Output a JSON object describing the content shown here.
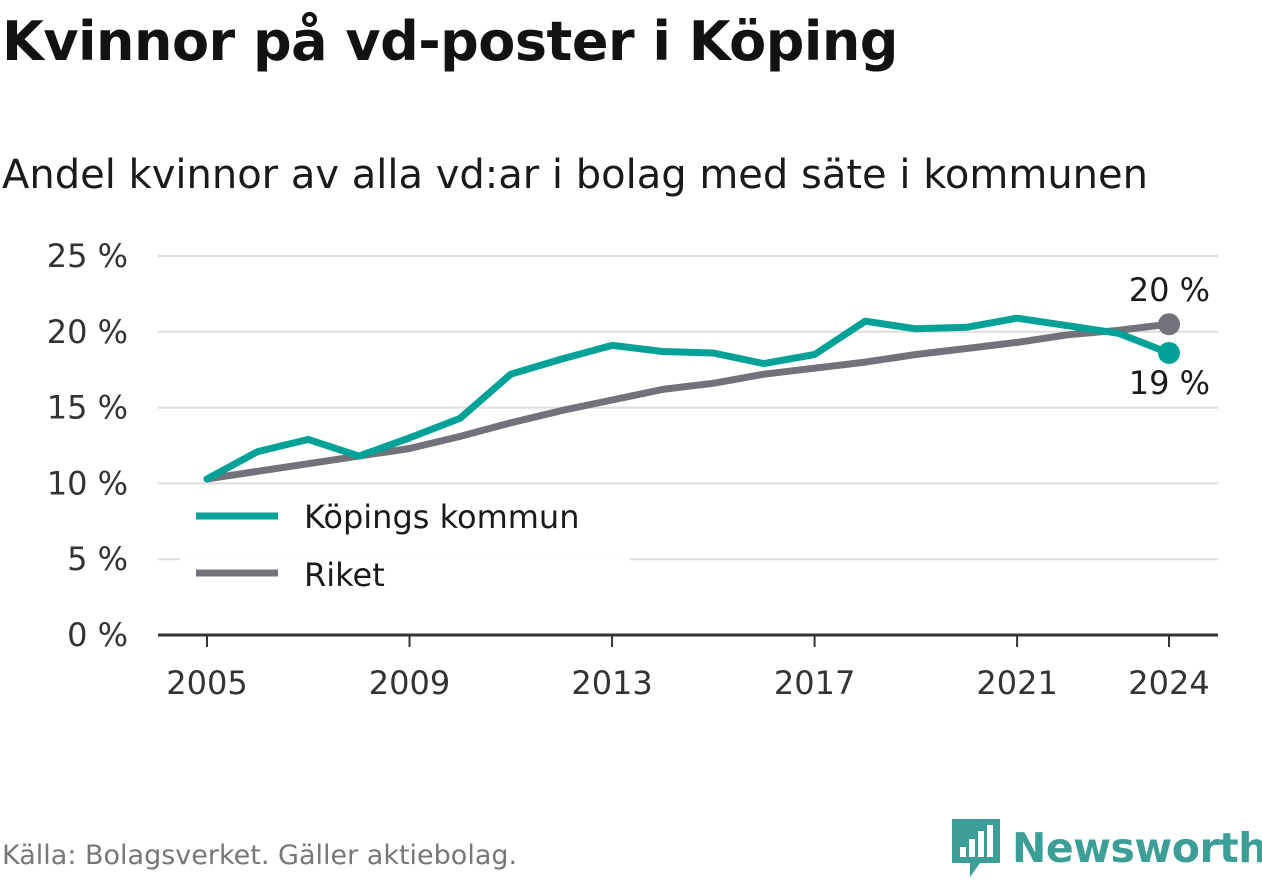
{
  "header": {
    "title": "Kvinnor på vd-poster i Köping",
    "subtitle": "Andel kvinnor av alla vd:ar i bolag med säte i kommunen"
  },
  "footer": {
    "source": "Källa: Bolagsverket. Gäller aktiebolag.",
    "brand": "Newsworthy",
    "brand_icon": "bar-chart-speech-bubble-icon"
  },
  "colors": {
    "kommun": "#00a196",
    "riket": "#72727a",
    "brand": "#3d9e98",
    "grid": "#dddddd",
    "axis": "#333333"
  },
  "chart_data": {
    "type": "line",
    "title": "Kvinnor på vd-poster i Köping",
    "subtitle": "Andel kvinnor av alla vd:ar i bolag med säte i kommunen",
    "x": [
      2005,
      2006,
      2007,
      2008,
      2009,
      2010,
      2011,
      2012,
      2013,
      2014,
      2015,
      2016,
      2017,
      2018,
      2019,
      2020,
      2021,
      2022,
      2023,
      2024
    ],
    "x_ticks": [
      2005,
      2009,
      2013,
      2017,
      2021,
      2024
    ],
    "y_ticks": [
      0,
      5,
      10,
      15,
      20,
      25
    ],
    "y_tick_labels": [
      "0 %",
      "5 %",
      "10 %",
      "15 %",
      "20 %",
      "25 %"
    ],
    "ylim": [
      0,
      25
    ],
    "grid": true,
    "legend_position": "bottom-left",
    "series": [
      {
        "name": "Köpings kommun",
        "values": [
          10.3,
          12.1,
          12.9,
          11.8,
          13.0,
          14.3,
          17.2,
          18.2,
          19.1,
          18.7,
          18.6,
          17.9,
          18.5,
          20.7,
          20.2,
          20.3,
          20.9,
          20.4,
          19.9,
          18.6
        ],
        "end_label": "19 %"
      },
      {
        "name": "Riket",
        "values": [
          10.3,
          10.8,
          11.3,
          11.8,
          12.3,
          13.1,
          14.0,
          14.8,
          15.5,
          16.2,
          16.6,
          17.2,
          17.6,
          18.0,
          18.5,
          18.9,
          19.3,
          19.8,
          20.1,
          20.5
        ],
        "end_label": "20 %"
      }
    ]
  }
}
